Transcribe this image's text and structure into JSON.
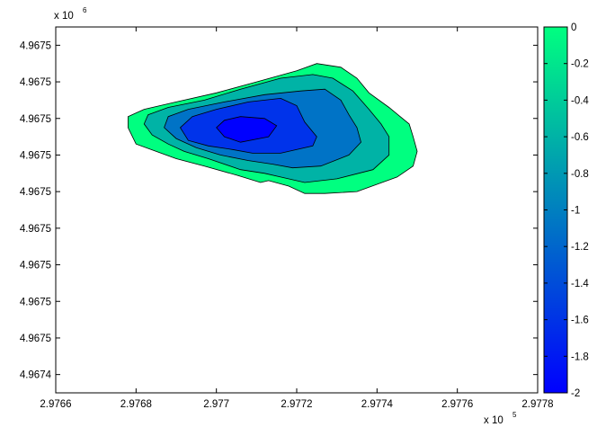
{
  "chart_data": {
    "type": "contourf",
    "x_axis": {
      "lim": [
        2.9766,
        2.9778
      ],
      "ticks": [
        2.9766,
        2.9768,
        2.977,
        2.9772,
        2.9774,
        2.9776,
        2.9778
      ],
      "tick_labels": [
        "2.9766",
        "2.9768",
        "2.977",
        "2.9772",
        "2.9774",
        "2.9776",
        "2.9778"
      ],
      "exponent_label": "x 10",
      "exponent_power": "5"
    },
    "y_axis": {
      "lim": [
        4.96739,
        4.96759
      ],
      "ticks": [
        4.9674,
        4.96742,
        4.96744,
        4.96746,
        4.96748,
        4.9675,
        4.96752,
        4.96754,
        4.96756,
        4.96758
      ],
      "tick_labels": [
        "4.9674",
        "4.9675",
        "4.9675",
        "4.9675",
        "4.9675",
        "4.9675",
        "4.9675",
        "4.9675",
        "4.9675",
        "4.9675"
      ],
      "exponent_label": "x 10",
      "exponent_power": "6"
    },
    "colorbar": {
      "range": [
        -2,
        0
      ],
      "ticks": [
        0,
        -0.2,
        -0.4,
        -0.6,
        -0.8,
        -1,
        -1.2,
        -1.4,
        -1.6,
        -1.8,
        -2
      ],
      "tick_labels": [
        "0",
        "-0.2",
        "-0.4",
        "-0.6",
        "-0.8",
        "-1",
        "-1.2",
        "-1.4",
        "-1.6",
        "-1.8",
        "-2"
      ],
      "colormap": "winter",
      "color_low": "#0000ff",
      "color_high": "#00ff80"
    },
    "levels": [
      {
        "value": 0,
        "color": "#00ff80",
        "polygon": [
          [
            2.97725,
            4.96757
          ],
          [
            2.97731,
            4.967568
          ],
          [
            2.97735,
            4.967562
          ],
          [
            2.97738,
            4.967554
          ],
          [
            2.97743,
            4.967546
          ],
          [
            2.97748,
            4.967537
          ],
          [
            2.97749,
            4.96753
          ],
          [
            2.9775,
            4.967522
          ],
          [
            2.97749,
            4.967514
          ],
          [
            2.97745,
            4.967508
          ],
          [
            2.97735,
            4.9675
          ],
          [
            2.97727,
            4.967499
          ],
          [
            2.97722,
            4.967499
          ],
          [
            2.97718,
            4.967503
          ],
          [
            2.97713,
            4.967506
          ],
          [
            2.97711,
            4.967505
          ],
          [
            2.97705,
            4.967509
          ],
          [
            2.97697,
            4.967514
          ],
          [
            2.9769,
            4.967518
          ],
          [
            2.97685,
            4.967522
          ],
          [
            2.9768,
            4.967526
          ],
          [
            2.97678,
            4.967535
          ],
          [
            2.97678,
            4.967541
          ],
          [
            2.97682,
            4.967545
          ],
          [
            2.9769,
            4.967549
          ],
          [
            2.977,
            4.967554
          ],
          [
            2.9771,
            4.96756
          ],
          [
            2.9772,
            4.967566
          ]
        ]
      },
      {
        "value": -0.4,
        "color": "#00b3a6",
        "polygon": [
          [
            2.97724,
            4.967564
          ],
          [
            2.97729,
            4.967562
          ],
          [
            2.97734,
            4.967555
          ],
          [
            2.97738,
            4.967545
          ],
          [
            2.97741,
            4.967537
          ],
          [
            2.97743,
            4.96753
          ],
          [
            2.97743,
            4.96752
          ],
          [
            2.97739,
            4.967512
          ],
          [
            2.9773,
            4.967507
          ],
          [
            2.97722,
            4.967505
          ],
          [
            2.97716,
            4.967508
          ],
          [
            2.97712,
            4.96751
          ],
          [
            2.97706,
            4.967512
          ],
          [
            2.97698,
            4.967518
          ],
          [
            2.97692,
            4.967522
          ],
          [
            2.97688,
            4.967526
          ],
          [
            2.97684,
            4.967531
          ],
          [
            2.97682,
            4.967537
          ],
          [
            2.97683,
            4.967542
          ],
          [
            2.97688,
            4.967546
          ],
          [
            2.97697,
            4.96755
          ],
          [
            2.97706,
            4.967556
          ],
          [
            2.97716,
            4.967562
          ]
        ]
      },
      {
        "value": -0.8,
        "color": "#0073c6",
        "polygon": [
          [
            2.97727,
            4.967556
          ],
          [
            2.97731,
            4.96755
          ],
          [
            2.97733,
            4.967542
          ],
          [
            2.97735,
            4.967535
          ],
          [
            2.97736,
            4.967527
          ],
          [
            2.97733,
            4.96752
          ],
          [
            2.97726,
            4.967514
          ],
          [
            2.97719,
            4.967513
          ],
          [
            2.97714,
            4.967515
          ],
          [
            2.97708,
            4.967517
          ],
          [
            2.97701,
            4.96752
          ],
          [
            2.97695,
            4.967524
          ],
          [
            2.9769,
            4.967529
          ],
          [
            2.97687,
            4.967535
          ],
          [
            2.97688,
            4.967541
          ],
          [
            2.97693,
            4.967545
          ],
          [
            2.97702,
            4.967549
          ],
          [
            2.97712,
            4.967553
          ],
          [
            2.97721,
            4.967555
          ]
        ]
      },
      {
        "value": -1.2,
        "color": "#0033ea",
        "polygon": [
          [
            2.97716,
            4.967551
          ],
          [
            2.9772,
            4.967547
          ],
          [
            2.97722,
            4.967538
          ],
          [
            2.97725,
            4.96753
          ],
          [
            2.97724,
            4.967525
          ],
          [
            2.97716,
            4.967521
          ],
          [
            2.97709,
            4.967521
          ],
          [
            2.97704,
            4.967523
          ],
          [
            2.97698,
            4.967525
          ],
          [
            2.97693,
            4.967528
          ],
          [
            2.97691,
            4.967535
          ],
          [
            2.97694,
            4.967541
          ],
          [
            2.977,
            4.967545
          ],
          [
            2.97708,
            4.967549
          ]
        ]
      },
      {
        "value": -1.6,
        "color": "#0000ff",
        "polygon": [
          [
            2.97706,
            4.967541
          ],
          [
            2.97712,
            4.96754
          ],
          [
            2.97715,
            4.967536
          ],
          [
            2.97713,
            4.96753
          ],
          [
            2.97706,
            4.967527
          ],
          [
            2.97702,
            4.96753
          ],
          [
            2.977,
            4.967535
          ],
          [
            2.97702,
            4.967539
          ]
        ]
      }
    ]
  }
}
